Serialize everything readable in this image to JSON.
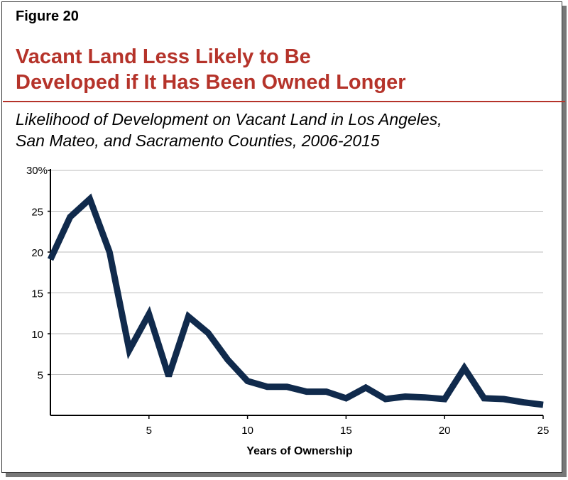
{
  "figure_label": "Figure 20",
  "title_lines": [
    "Vacant Land Less Likely to Be",
    "Developed if It Has Been Owned Longer"
  ],
  "subtitle_lines": [
    "Likelihood of Development on Vacant Land in Los Angeles,",
    "San Mateo, and Sacramento Counties, 2006-2015"
  ],
  "colors": {
    "title": "#b5332a",
    "line": "#102a4c",
    "grid": "#bbbbbb"
  },
  "chart_data": {
    "type": "line",
    "xlabel": "Years of Ownership",
    "ylabel": "",
    "xlim": [
      0,
      25
    ],
    "ylim": [
      0,
      30
    ],
    "grid": true,
    "x_ticks": [
      5,
      10,
      15,
      20,
      25
    ],
    "y_ticks": [
      5,
      10,
      15,
      20,
      25,
      30
    ],
    "y_tick_labels": [
      "5",
      "10",
      "15",
      "20",
      "25",
      "30%"
    ],
    "x": [
      0,
      1,
      2,
      3,
      4,
      5,
      6,
      7,
      8,
      9,
      10,
      11,
      12,
      13,
      14,
      15,
      16,
      17,
      18,
      19,
      20,
      21,
      22,
      23,
      24,
      25
    ],
    "series": [
      {
        "values": [
          19.1,
          24.3,
          26.5,
          20.0,
          8.0,
          12.4,
          4.8,
          12.1,
          10.1,
          6.8,
          4.2,
          3.5,
          3.5,
          2.9,
          2.9,
          2.1,
          3.4,
          2.0,
          2.3,
          2.2,
          2.0,
          5.8,
          2.1,
          2.0,
          1.6,
          1.3
        ]
      }
    ]
  }
}
